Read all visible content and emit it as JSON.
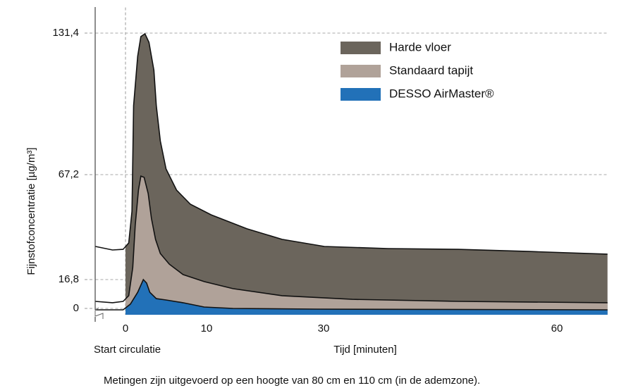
{
  "chart_data": {
    "type": "area",
    "ylabel": "Fijnstofconcentratie [µg/m³]",
    "xlabel": "Tijd [minuten]",
    "annotation": "Start circulatie",
    "note": "Metingen zijn uitgevoerd op een hoogte van 80 cm en 110 cm (in de ademzone).",
    "xlim": [
      -3.7,
      66.5
    ],
    "xticks": [
      0,
      10,
      30,
      60
    ],
    "ylim": [
      -3.7,
      143
    ],
    "yticks": [
      0,
      {
        "value": 16.8,
        "label": "16,8"
      },
      {
        "value": 67.2,
        "label": "67,2"
      },
      {
        "value": 131.4,
        "label": "131,4"
      }
    ],
    "grid": true,
    "legend": "upper right",
    "series": [
      {
        "name": "Harde vloer",
        "color": "#6b655c",
        "x": [
          -3.7,
          -1.6,
          -0.3,
          0.4,
          0.8,
          1.0,
          1.5,
          1.9,
          2.4,
          2.9,
          3.5,
          3.8,
          4.3,
          5.0,
          6.3,
          8.0,
          10.8,
          16.9,
          22.9,
          30.1,
          38.3,
          47.3,
          56.4,
          66.5
        ],
        "values": [
          32.7,
          31.0,
          31.3,
          34.4,
          49.6,
          98.5,
          120.9,
          129.8,
          131.1,
          127.2,
          114.5,
          98.5,
          82.5,
          69.8,
          59.8,
          53.0,
          47.9,
          41.2,
          36.1,
          32.7,
          31.7,
          31.3,
          30.3,
          29.0
        ]
      },
      {
        "name": "Standaard tapijt",
        "color": "#b0a299",
        "x": [
          -3.7,
          -1.6,
          -0.3,
          0.4,
          0.9,
          1.2,
          1.6,
          1.9,
          2.3,
          2.8,
          3.2,
          3.7,
          4.3,
          5.4,
          7.1,
          9.7,
          14.5,
          22.9,
          33.7,
          47.3,
          66.5
        ],
        "values": [
          4.1,
          3.3,
          4.1,
          7.4,
          22.6,
          42.8,
          59.8,
          66.5,
          65.9,
          58.1,
          46.2,
          36.1,
          29.3,
          24.2,
          19.2,
          15.6,
          11.5,
          7.4,
          5.3,
          4.1,
          3.3
        ]
      },
      {
        "name": "DESSO AirMaster®",
        "color": "#2271b8",
        "x": [
          -3.7,
          -0.3,
          0.6,
          1.5,
          2.2,
          2.6,
          3.0,
          3.8,
          5.0,
          7.1,
          9.7,
          14.5,
          28.9,
          66.5
        ],
        "values": [
          -0.8,
          -0.8,
          2.5,
          9.4,
          16.8,
          14.8,
          9.4,
          5.7,
          4.9,
          3.3,
          0.8,
          0.0,
          -0.4,
          -0.8
        ]
      }
    ]
  }
}
